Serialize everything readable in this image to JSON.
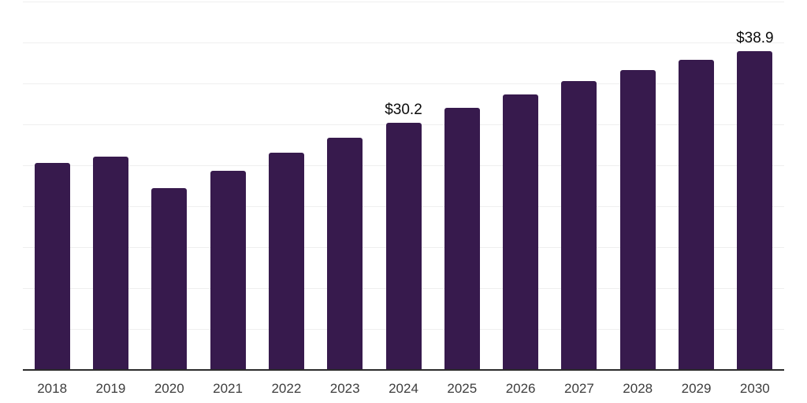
{
  "chart_data": {
    "type": "bar",
    "categories": [
      "2018",
      "2019",
      "2020",
      "2021",
      "2022",
      "2023",
      "2024",
      "2025",
      "2026",
      "2027",
      "2028",
      "2029",
      "2030"
    ],
    "values": [
      25.3,
      26.1,
      22.2,
      24.3,
      26.5,
      28.4,
      30.2,
      32.0,
      33.7,
      35.3,
      36.6,
      37.9,
      38.9
    ],
    "annotations": [
      {
        "category": "2024",
        "text": "$30.2"
      },
      {
        "category": "2030",
        "text": "$38.9"
      }
    ],
    "value_prefix": "$",
    "title": "",
    "xlabel": "",
    "ylabel": "",
    "ylim": [
      0,
      45
    ],
    "gridline_step": 5,
    "grid": true,
    "legend": false,
    "y_axis_labels_visible": false
  },
  "colors": {
    "bar": "#371A4D",
    "gridline": "#EFEFEF",
    "axis_line": "#2B2B2B",
    "tick_label": "#3D3D3D",
    "annotation_label": "#0A0A0A",
    "background": "#FFFFFF"
  }
}
